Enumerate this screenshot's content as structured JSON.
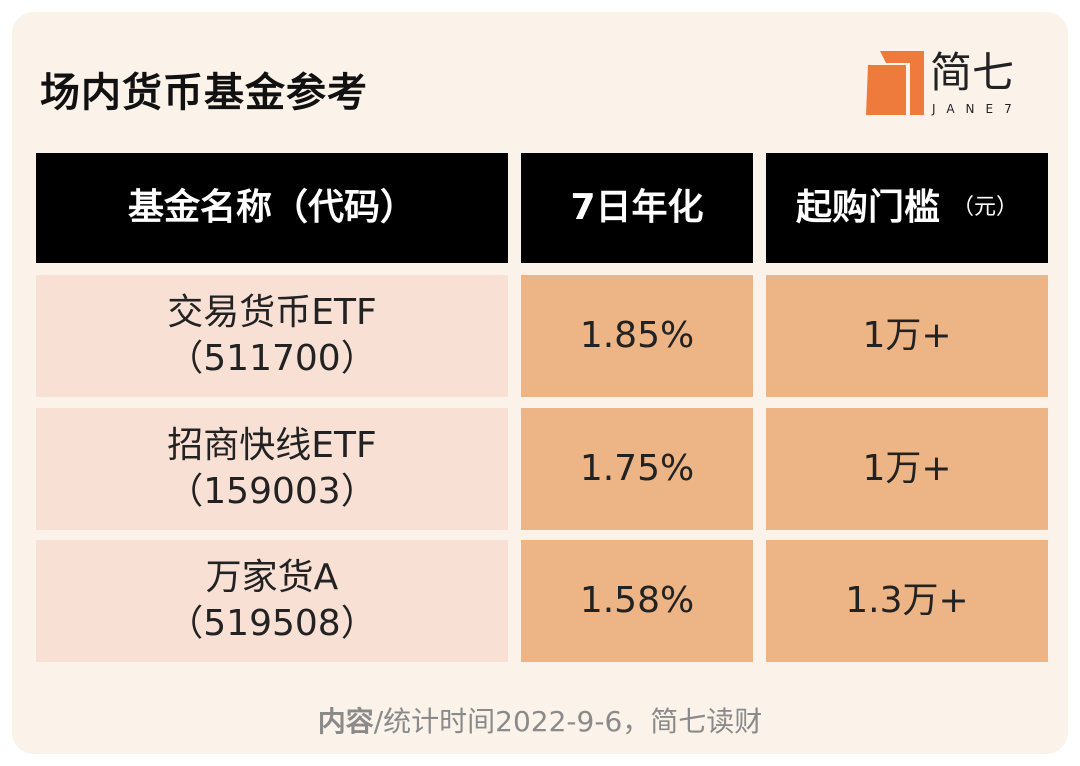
{
  "header": {
    "title": "场内货币基金参考",
    "logo": {
      "name": "简七",
      "sub": "JANE7"
    }
  },
  "table": {
    "columns": [
      {
        "label": "基金名称（代码）"
      },
      {
        "label": "7日年化"
      },
      {
        "label": "起购门槛",
        "unit": "（元）"
      }
    ],
    "rows": [
      [
        {
          "name": "交易货币ETF",
          "code": "（511700）"
        },
        "1.85%",
        "1万+"
      ],
      [
        {
          "name": "招商快线ETF",
          "code": "（159003）"
        },
        "1.75%",
        "1万+"
      ],
      [
        {
          "name": "万家货A",
          "code": "（519508）"
        },
        "1.58%",
        "1.3万+"
      ]
    ]
  },
  "footer": {
    "label": "内容",
    "text": "/统计时间2022-9-6，简七读财"
  }
}
